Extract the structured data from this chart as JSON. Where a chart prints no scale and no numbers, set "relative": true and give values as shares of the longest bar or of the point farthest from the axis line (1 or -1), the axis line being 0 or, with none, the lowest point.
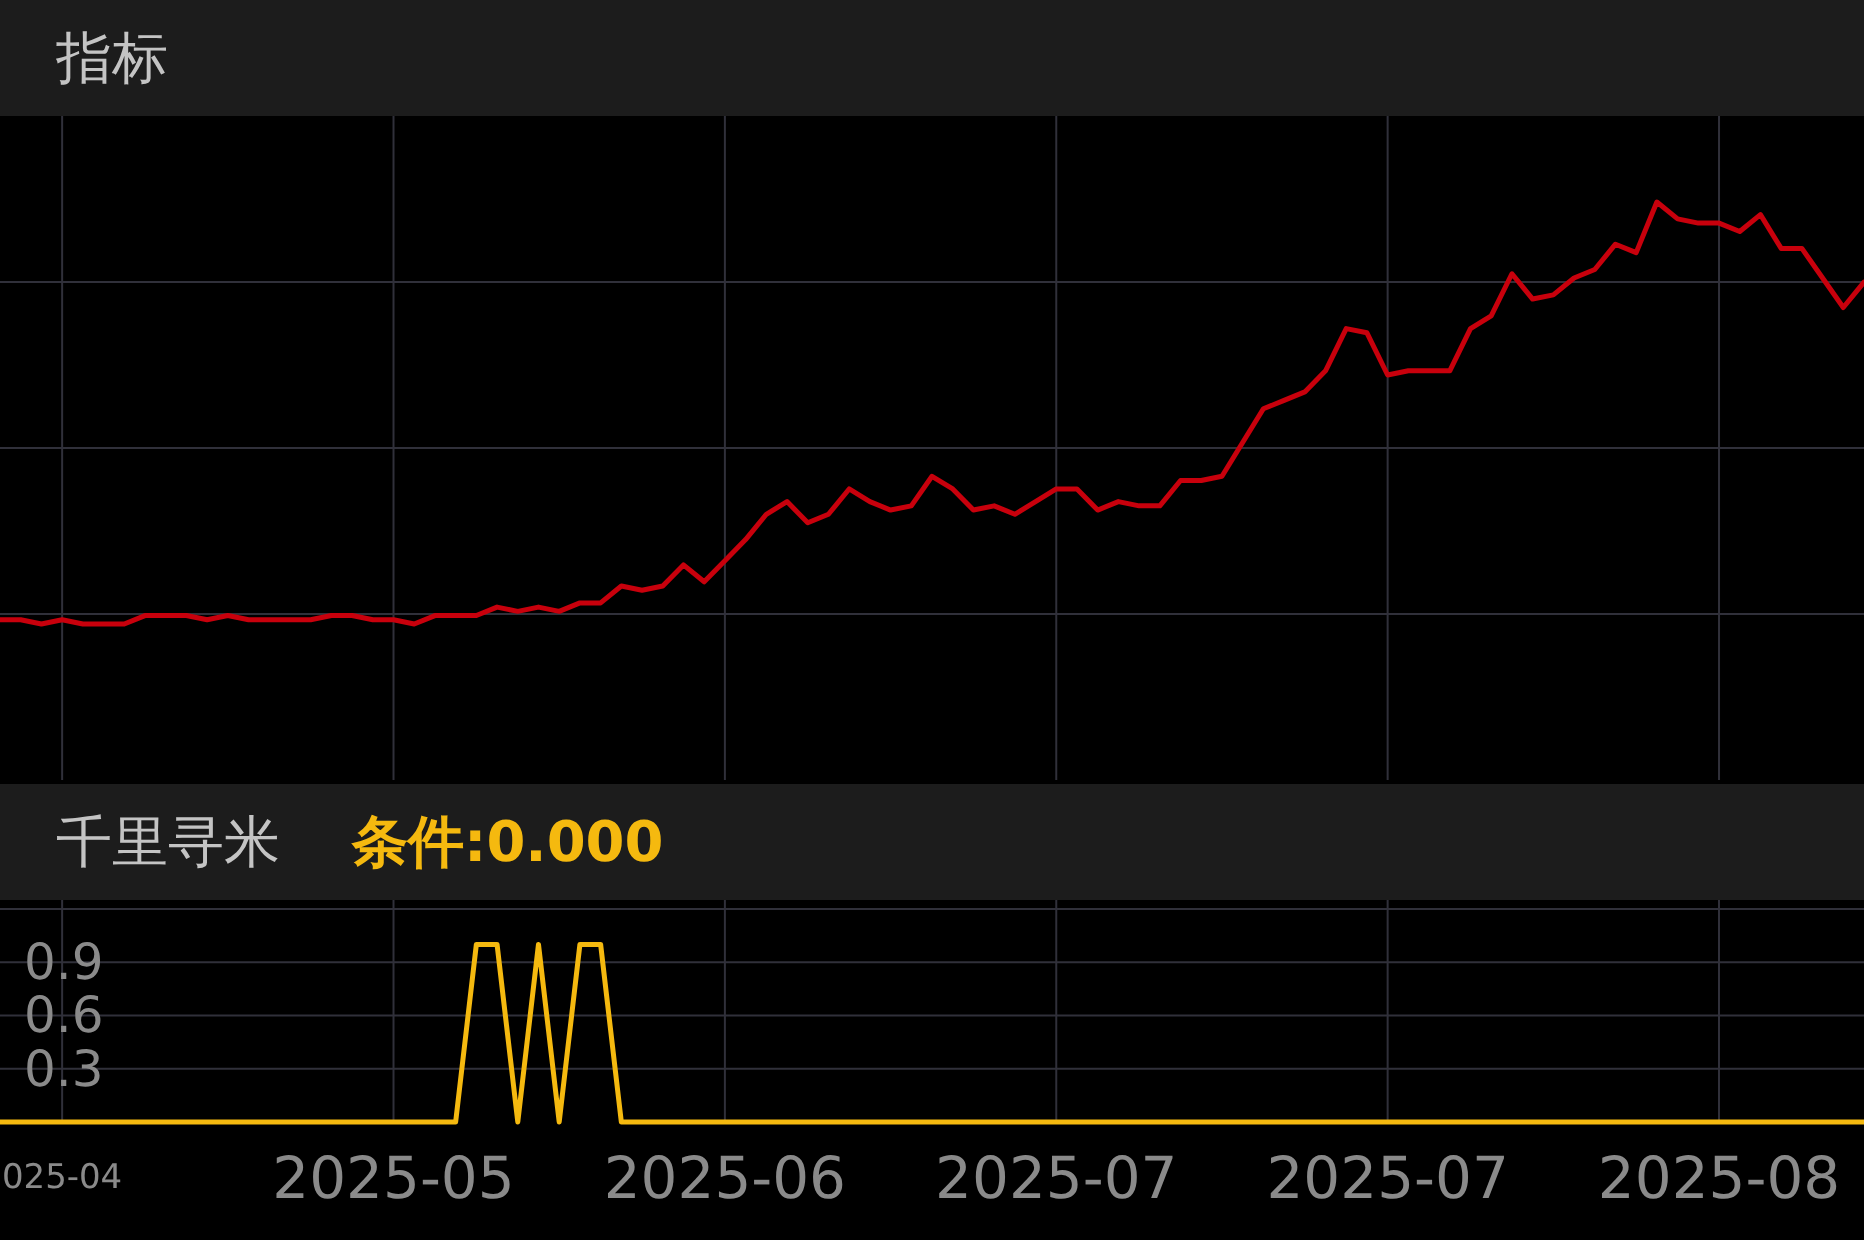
{
  "chart_data": [
    {
      "type": "line",
      "title": "指标",
      "relative": true,
      "grid": true,
      "categories": [
        null,
        null,
        null,
        null,
        null,
        null,
        null,
        null,
        null,
        null,
        null,
        null,
        null,
        null,
        null,
        null,
        null,
        null,
        null,
        null,
        null,
        null,
        null,
        null,
        null,
        null,
        null,
        null,
        null,
        null,
        null,
        null,
        null,
        null,
        null,
        null,
        null,
        null,
        null,
        null,
        null,
        null,
        null,
        null,
        null,
        null,
        null,
        null,
        null,
        null,
        null,
        null,
        null,
        null,
        null,
        null,
        null,
        null,
        null,
        null,
        null,
        null,
        null,
        null,
        null,
        null,
        null,
        null,
        null,
        null,
        null,
        null,
        null,
        null,
        null,
        null,
        null,
        null,
        null,
        null,
        null,
        null,
        null,
        null,
        null,
        null,
        null,
        null,
        null,
        null,
        null
      ],
      "series": [
        {
          "color": "#c8000c",
          "values": [
            0.01,
            0.01,
            0.0,
            0.01,
            0.0,
            0.0,
            0.0,
            0.02,
            0.02,
            0.02,
            0.01,
            0.02,
            0.01,
            0.01,
            0.01,
            0.01,
            0.02,
            0.02,
            0.01,
            0.01,
            0.0,
            0.02,
            0.02,
            0.02,
            0.04,
            0.03,
            0.04,
            0.03,
            0.05,
            0.05,
            0.09,
            0.08,
            0.09,
            0.14,
            0.1,
            0.15,
            0.2,
            0.26,
            0.29,
            0.24,
            0.26,
            0.32,
            0.29,
            0.27,
            0.28,
            0.35,
            0.32,
            0.27,
            0.28,
            0.26,
            0.29,
            0.32,
            0.32,
            0.27,
            0.29,
            0.28,
            0.28,
            0.34,
            0.34,
            0.35,
            0.43,
            0.51,
            0.53,
            0.55,
            0.6,
            0.7,
            0.69,
            0.59,
            0.6,
            0.6,
            0.6,
            0.7,
            0.73,
            0.83,
            0.77,
            0.78,
            0.82,
            0.84,
            0.9,
            0.88,
            1.0,
            0.96,
            0.95,
            0.95,
            0.93,
            0.97,
            0.89,
            0.89,
            0.82,
            0.75,
            0.81
          ]
        }
      ]
    },
    {
      "type": "line",
      "title": "千里寻米",
      "subtitle": "条件:0.000",
      "grid": true,
      "ylim": [
        0,
        1.25
      ],
      "yticks": [
        0.3,
        0.6,
        0.9,
        {
          "value": 1.2,
          "label": null
        }
      ],
      "categories": [
        null,
        null,
        null,
        "025-04",
        null,
        null,
        null,
        null,
        null,
        null,
        null,
        null,
        null,
        null,
        null,
        null,
        null,
        null,
        null,
        "2025-05",
        null,
        null,
        null,
        null,
        null,
        null,
        null,
        null,
        null,
        null,
        null,
        null,
        null,
        null,
        null,
        "2025-06",
        null,
        null,
        null,
        null,
        null,
        null,
        null,
        null,
        null,
        null,
        null,
        null,
        null,
        null,
        null,
        "2025-07",
        null,
        null,
        null,
        null,
        null,
        null,
        null,
        null,
        null,
        null,
        null,
        null,
        null,
        null,
        null,
        "2025-07",
        null,
        null,
        null,
        null,
        null,
        null,
        null,
        null,
        null,
        null,
        null,
        null,
        null,
        null,
        null,
        "2025-08",
        null,
        null,
        null,
        null,
        null,
        null,
        null
      ],
      "series": [
        {
          "color": "#f5b90f",
          "values": [
            0,
            0,
            0,
            0,
            0,
            0,
            0,
            0,
            0,
            0,
            0,
            0,
            0,
            0,
            0,
            0,
            0,
            0,
            0,
            0,
            0,
            0,
            0,
            1,
            1,
            0,
            1,
            0,
            1,
            1,
            0,
            0,
            0,
            0,
            0,
            0,
            0,
            0,
            0,
            0,
            0,
            0,
            0,
            0,
            0,
            0,
            0,
            0,
            0,
            0,
            0,
            0,
            0,
            0,
            0,
            0,
            0,
            0,
            0,
            0,
            0,
            0,
            0,
            0,
            0,
            0,
            0,
            0,
            0,
            0,
            0,
            0,
            0,
            0,
            0,
            0,
            0,
            0,
            0,
            0,
            0,
            0,
            0,
            0,
            0,
            0,
            0,
            0,
            0,
            0,
            0
          ]
        }
      ]
    }
  ]
}
